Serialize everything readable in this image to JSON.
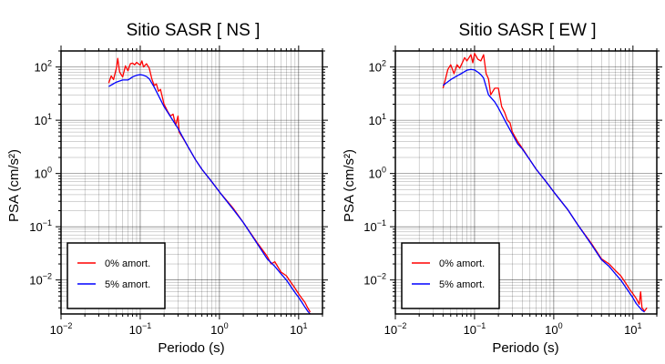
{
  "chart_data": [
    {
      "type": "line",
      "title": "Sitio SASR [ NS ]",
      "xlabel": "Periodo (s)",
      "ylabel": "PSA (cm/s²)",
      "xscale": "log",
      "yscale": "log",
      "xlim": [
        0.01,
        20
      ],
      "ylim": [
        0.0023,
        200
      ],
      "grid": true,
      "legend_position": "bottom-left",
      "x_ticks": [
        {
          "base": "10",
          "exp": "−2",
          "value": 0.01
        },
        {
          "base": "10",
          "exp": "−1",
          "value": 0.1
        },
        {
          "base": "10",
          "exp": "0",
          "value": 1
        },
        {
          "base": "10",
          "exp": "1",
          "value": 10
        }
      ],
      "y_ticks": [
        {
          "base": "10",
          "exp": "−2",
          "value": 0.01
        },
        {
          "base": "10",
          "exp": "−1",
          "value": 0.1
        },
        {
          "base": "10",
          "exp": "0",
          "value": 1
        },
        {
          "base": "10",
          "exp": "1",
          "value": 10
        },
        {
          "base": "10",
          "exp": "2",
          "value": 100
        }
      ],
      "series": [
        {
          "name": "0% amort.",
          "color": "#ff0000",
          "points": [
            [
              0.04,
              50
            ],
            [
              0.043,
              68
            ],
            [
              0.046,
              58
            ],
            [
              0.05,
              95
            ],
            [
              0.052,
              145
            ],
            [
              0.055,
              80
            ],
            [
              0.06,
              65
            ],
            [
              0.065,
              105
            ],
            [
              0.07,
              85
            ],
            [
              0.075,
              115
            ],
            [
              0.08,
              118
            ],
            [
              0.085,
              110
            ],
            [
              0.09,
              122
            ],
            [
              0.1,
              108
            ],
            [
              0.105,
              130
            ],
            [
              0.11,
              100
            ],
            [
              0.12,
              115
            ],
            [
              0.13,
              95
            ],
            [
              0.14,
              60
            ],
            [
              0.15,
              45
            ],
            [
              0.16,
              48
            ],
            [
              0.17,
              35
            ],
            [
              0.18,
              38
            ],
            [
              0.2,
              20
            ],
            [
              0.22,
              15
            ],
            [
              0.24,
              12
            ],
            [
              0.26,
              13
            ],
            [
              0.28,
              8
            ],
            [
              0.3,
              12
            ],
            [
              0.31,
              6
            ],
            [
              0.35,
              4.5
            ],
            [
              0.4,
              3.2
            ],
            [
              0.5,
              1.8
            ],
            [
              0.6,
              1.2
            ],
            [
              0.8,
              0.7
            ],
            [
              1,
              0.45
            ],
            [
              1.5,
              0.22
            ],
            [
              2,
              0.12
            ],
            [
              3,
              0.05
            ],
            [
              4,
              0.028
            ],
            [
              4.5,
              0.02
            ],
            [
              5,
              0.022
            ],
            [
              6,
              0.014
            ],
            [
              7,
              0.012
            ],
            [
              8,
              0.009
            ],
            [
              9,
              0.007
            ],
            [
              10,
              0.0055
            ],
            [
              11,
              0.0045
            ],
            [
              12,
              0.0038
            ],
            [
              13,
              0.003
            ],
            [
              14,
              0.0025
            ]
          ]
        },
        {
          "name": "5% amort.",
          "color": "#0000ff",
          "points": [
            [
              0.04,
              43
            ],
            [
              0.05,
              52
            ],
            [
              0.06,
              57
            ],
            [
              0.07,
              57
            ],
            [
              0.08,
              65
            ],
            [
              0.09,
              70
            ],
            [
              0.1,
              72
            ],
            [
              0.11,
              70
            ],
            [
              0.12,
              66
            ],
            [
              0.13,
              60
            ],
            [
              0.15,
              42
            ],
            [
              0.2,
              18
            ],
            [
              0.3,
              7
            ],
            [
              0.4,
              3.2
            ],
            [
              0.5,
              1.8
            ],
            [
              0.6,
              1.2
            ],
            [
              0.8,
              0.7
            ],
            [
              1,
              0.45
            ],
            [
              1.5,
              0.21
            ],
            [
              2,
              0.12
            ],
            [
              3,
              0.048
            ],
            [
              4,
              0.025
            ],
            [
              5,
              0.018
            ],
            [
              6,
              0.013
            ],
            [
              7,
              0.01
            ],
            [
              8,
              0.0075
            ],
            [
              9,
              0.0058
            ],
            [
              10,
              0.0047
            ],
            [
              11,
              0.0038
            ],
            [
              12,
              0.0031
            ],
            [
              13,
              0.0026
            ],
            [
              14,
              0.0023
            ]
          ]
        }
      ]
    },
    {
      "type": "line",
      "title": "Sitio SASR [ EW ]",
      "xlabel": "Periodo (s)",
      "ylabel": "PSA (cm/s²)",
      "xscale": "log",
      "yscale": "log",
      "xlim": [
        0.01,
        20
      ],
      "ylim": [
        0.0023,
        200
      ],
      "grid": true,
      "legend_position": "bottom-left",
      "x_ticks": [
        {
          "base": "10",
          "exp": "−2",
          "value": 0.01
        },
        {
          "base": "10",
          "exp": "−1",
          "value": 0.1
        },
        {
          "base": "10",
          "exp": "0",
          "value": 1
        },
        {
          "base": "10",
          "exp": "1",
          "value": 10
        }
      ],
      "y_ticks": [
        {
          "base": "10",
          "exp": "−2",
          "value": 0.01
        },
        {
          "base": "10",
          "exp": "−1",
          "value": 0.1
        },
        {
          "base": "10",
          "exp": "0",
          "value": 1
        },
        {
          "base": "10",
          "exp": "1",
          "value": 10
        },
        {
          "base": "10",
          "exp": "2",
          "value": 100
        }
      ],
      "series": [
        {
          "name": "0% amort.",
          "color": "#ff0000",
          "points": [
            [
              0.04,
              40
            ],
            [
              0.043,
              60
            ],
            [
              0.046,
              90
            ],
            [
              0.05,
              110
            ],
            [
              0.055,
              75
            ],
            [
              0.06,
              110
            ],
            [
              0.065,
              95
            ],
            [
              0.07,
              120
            ],
            [
              0.075,
              150
            ],
            [
              0.08,
              130
            ],
            [
              0.09,
              170
            ],
            [
              0.095,
              120
            ],
            [
              0.1,
              180
            ],
            [
              0.11,
              140
            ],
            [
              0.12,
              130
            ],
            [
              0.13,
              170
            ],
            [
              0.14,
              75
            ],
            [
              0.15,
              60
            ],
            [
              0.16,
              30
            ],
            [
              0.18,
              40
            ],
            [
              0.2,
              40
            ],
            [
              0.22,
              18
            ],
            [
              0.24,
              14
            ],
            [
              0.26,
              10
            ],
            [
              0.28,
              9
            ],
            [
              0.3,
              6
            ],
            [
              0.35,
              4
            ],
            [
              0.4,
              3
            ],
            [
              0.5,
              1.8
            ],
            [
              0.6,
              1.2
            ],
            [
              0.8,
              0.7
            ],
            [
              1,
              0.45
            ],
            [
              1.5,
              0.21
            ],
            [
              2,
              0.11
            ],
            [
              3,
              0.048
            ],
            [
              4,
              0.025
            ],
            [
              5,
              0.02
            ],
            [
              6,
              0.015
            ],
            [
              7,
              0.012
            ],
            [
              8,
              0.009
            ],
            [
              9,
              0.0068
            ],
            [
              10,
              0.0055
            ],
            [
              11,
              0.0045
            ],
            [
              12,
              0.0035
            ],
            [
              12.5,
              0.006
            ],
            [
              13,
              0.003
            ],
            [
              14,
              0.0026
            ],
            [
              15,
              0.003
            ]
          ]
        },
        {
          "name": "5% amort.",
          "color": "#0000ff",
          "points": [
            [
              0.04,
              45
            ],
            [
              0.05,
              58
            ],
            [
              0.06,
              68
            ],
            [
              0.07,
              77
            ],
            [
              0.08,
              87
            ],
            [
              0.09,
              90
            ],
            [
              0.1,
              88
            ],
            [
              0.11,
              80
            ],
            [
              0.12,
              72
            ],
            [
              0.13,
              62
            ],
            [
              0.15,
              30
            ],
            [
              0.18,
              22
            ],
            [
              0.2,
              17
            ],
            [
              0.25,
              9
            ],
            [
              0.3,
              5.5
            ],
            [
              0.35,
              3.6
            ],
            [
              0.4,
              2.9
            ],
            [
              0.5,
              1.8
            ],
            [
              0.6,
              1.2
            ],
            [
              0.8,
              0.7
            ],
            [
              1,
              0.45
            ],
            [
              1.5,
              0.21
            ],
            [
              2,
              0.11
            ],
            [
              3,
              0.046
            ],
            [
              4,
              0.024
            ],
            [
              5,
              0.018
            ],
            [
              6,
              0.013
            ],
            [
              7,
              0.01
            ],
            [
              8,
              0.0075
            ],
            [
              9,
              0.0058
            ],
            [
              10,
              0.0046
            ],
            [
              11,
              0.0036
            ],
            [
              12,
              0.0031
            ],
            [
              13,
              0.0027
            ],
            [
              14,
              0.0025
            ]
          ]
        }
      ]
    }
  ]
}
